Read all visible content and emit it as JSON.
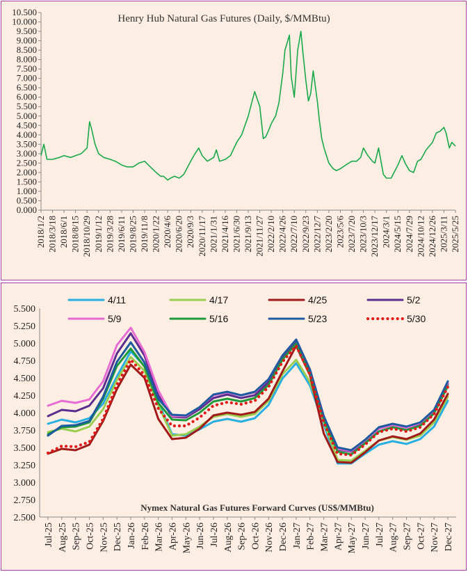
{
  "colors": {
    "panel_bg": "#fdeee4",
    "border": "#a33ca3",
    "henry_hub_line": "#18a84a",
    "axis": "#888888"
  },
  "chart_data": [
    {
      "type": "line",
      "title": "Henry Hub Natural Gas Futures (Daily,  $/MMBtu)",
      "xlabel": "",
      "ylabel": "",
      "ylim": [
        0,
        10.5
      ],
      "yticks": [
        "0.000",
        "0.500",
        "1.000",
        "1.500",
        "2.000",
        "2.500",
        "3.000",
        "3.500",
        "4.000",
        "4.500",
        "5.000",
        "5.500",
        "6.000",
        "6.500",
        "7.000",
        "7.500",
        "8.000",
        "8.500",
        "9.000",
        "9.500",
        "10.000",
        "10.500"
      ],
      "grid": false,
      "legend": "none",
      "x_tick_labels": [
        "2018/1/2",
        "2018/3/18",
        "2018/6/1",
        "2018/8/15",
        "2018/10/29",
        "2019/1/12",
        "2019/3/28",
        "2019/6/11",
        "2019/8/25",
        "2019/11/8",
        "2020/1/22",
        "2020/4/6",
        "2020/6/20",
        "2020/9/3",
        "2020/11/17",
        "2021/1/31",
        "2021/4/16",
        "2021/6/30",
        "2021/9/13",
        "2021/11/27",
        "2022/2/10",
        "2022/4/26",
        "2022/7/10",
        "2022/9/23",
        "2022/12/7",
        "2023/2/20",
        "2023/5/6",
        "2023/7/20",
        "2023/10/3",
        "2023/12/17",
        "2024/3/1",
        "2024/5/15",
        "2024/7/29",
        "2024/10/12",
        "2024/12/26",
        "2025/3/11",
        "2025/5/25"
      ],
      "series": [
        {
          "name": "",
          "x": [
            "2018-01-02",
            "2018-01-20",
            "2018-02-10",
            "2018-03-18",
            "2018-05-01",
            "2018-06-01",
            "2018-07-15",
            "2018-08-15",
            "2018-09-20",
            "2018-10-29",
            "2018-11-14",
            "2018-11-28",
            "2018-12-20",
            "2019-01-12",
            "2019-02-15",
            "2019-03-28",
            "2019-05-01",
            "2019-06-11",
            "2019-07-15",
            "2019-08-25",
            "2019-10-01",
            "2019-11-08",
            "2019-12-15",
            "2020-01-22",
            "2020-02-20",
            "2020-03-10",
            "2020-04-06",
            "2020-04-25",
            "2020-05-20",
            "2020-06-20",
            "2020-07-20",
            "2020-08-15",
            "2020-09-03",
            "2020-10-01",
            "2020-10-25",
            "2020-11-17",
            "2020-12-20",
            "2021-01-31",
            "2021-02-17",
            "2021-03-10",
            "2021-04-16",
            "2021-05-20",
            "2021-06-30",
            "2021-08-01",
            "2021-09-13",
            "2021-10-05",
            "2021-10-25",
            "2021-11-27",
            "2021-12-20",
            "2022-01-05",
            "2022-01-27",
            "2022-02-10",
            "2022-03-10",
            "2022-04-01",
            "2022-04-26",
            "2022-05-10",
            "2022-06-08",
            "2022-06-20",
            "2022-07-10",
            "2022-08-01",
            "2022-08-22",
            "2022-09-05",
            "2022-09-23",
            "2022-10-10",
            "2022-10-25",
            "2022-11-10",
            "2022-12-07",
            "2022-12-20",
            "2023-01-05",
            "2023-01-20",
            "2023-02-20",
            "2023-03-20",
            "2023-04-10",
            "2023-05-06",
            "2023-06-10",
            "2023-07-20",
            "2023-08-20",
            "2023-09-15",
            "2023-10-03",
            "2023-11-01",
            "2023-12-01",
            "2023-12-17",
            "2024-01-10",
            "2024-02-10",
            "2024-03-01",
            "2024-04-01",
            "2024-05-15",
            "2024-06-10",
            "2024-07-01",
            "2024-07-29",
            "2024-08-25",
            "2024-09-20",
            "2024-10-12",
            "2024-11-15",
            "2024-12-26",
            "2025-01-20",
            "2025-02-15",
            "2025-03-11",
            "2025-03-25",
            "2025-04-15",
            "2025-05-01",
            "2025-05-25"
          ],
          "values": [
            2.9,
            3.5,
            2.7,
            2.7,
            2.8,
            2.9,
            2.8,
            2.9,
            3.0,
            3.3,
            4.7,
            4.3,
            3.5,
            3.0,
            2.8,
            2.7,
            2.6,
            2.4,
            2.3,
            2.3,
            2.5,
            2.6,
            2.3,
            2.0,
            1.8,
            1.8,
            1.6,
            1.7,
            1.8,
            1.7,
            1.9,
            2.3,
            2.6,
            3.0,
            3.3,
            2.9,
            2.6,
            2.8,
            3.2,
            2.6,
            2.7,
            2.9,
            3.6,
            4.0,
            5.0,
            5.7,
            6.3,
            5.5,
            3.8,
            3.9,
            4.3,
            4.6,
            5.0,
            5.7,
            7.3,
            8.5,
            9.3,
            7.1,
            6.0,
            8.5,
            9.5,
            8.3,
            6.9,
            5.8,
            6.2,
            7.4,
            5.8,
            4.8,
            3.8,
            3.3,
            2.5,
            2.2,
            2.1,
            2.2,
            2.4,
            2.6,
            2.6,
            2.8,
            3.3,
            2.9,
            2.6,
            2.5,
            3.3,
            1.9,
            1.7,
            1.7,
            2.4,
            2.9,
            2.5,
            2.1,
            2.0,
            2.6,
            2.7,
            3.2,
            3.6,
            4.1,
            4.2,
            4.4,
            4.1,
            3.3,
            3.6,
            3.4
          ]
        }
      ]
    },
    {
      "type": "line",
      "title": "Nymex  Natural  Gas Futures Forward  Curves (US$/MMBtu)",
      "xlabel": "",
      "ylabel": "",
      "ylim": [
        2.5,
        5.5
      ],
      "yticks": [
        "2.500",
        "2.750",
        "3.000",
        "3.250",
        "3.500",
        "3.750",
        "4.000",
        "4.250",
        "4.500",
        "4.750",
        "5.000",
        "5.250",
        "5.500"
      ],
      "grid": false,
      "legend": "top",
      "categories": [
        "Jul-25",
        "Aug-25",
        "Sep-25",
        "Oct-25",
        "Nov-25",
        "Dec-25",
        "Jan-26",
        "Feb-26",
        "Mar-26",
        "Apr-26",
        "May-26",
        "Jun-26",
        "Jul-26",
        "Aug-26",
        "Sep-26",
        "Oct-26",
        "Nov-26",
        "Dec-26",
        "Jan-27",
        "Feb-27",
        "Mar-27",
        "Apr-27",
        "May-27",
        "Jun-27",
        "Jul-27",
        "Aug-27",
        "Sep-27",
        "Oct-27",
        "Nov-27",
        "Dec-27"
      ],
      "series": [
        {
          "name": "4/11",
          "color": "#28aee0",
          "dotted": false,
          "values": [
            3.84,
            3.9,
            3.86,
            3.92,
            4.13,
            4.52,
            4.88,
            4.67,
            4.15,
            3.69,
            3.67,
            3.76,
            3.87,
            3.91,
            3.87,
            3.92,
            4.11,
            4.49,
            4.71,
            4.39,
            3.83,
            3.27,
            3.27,
            3.41,
            3.54,
            3.59,
            3.55,
            3.62,
            3.8,
            4.17
          ]
        },
        {
          "name": "4/17",
          "color": "#9acd4e",
          "dotted": false,
          "values": [
            3.72,
            3.77,
            3.73,
            3.8,
            4.05,
            4.47,
            4.8,
            4.6,
            4.11,
            3.67,
            3.69,
            3.8,
            3.94,
            3.98,
            3.94,
            3.98,
            4.17,
            4.55,
            4.76,
            4.44,
            3.87,
            3.32,
            3.31,
            3.45,
            3.6,
            3.65,
            3.61,
            3.67,
            3.86,
            4.23
          ]
        },
        {
          "name": "4/25",
          "color": "#a11a1a",
          "dotted": false,
          "values": [
            3.41,
            3.48,
            3.46,
            3.54,
            3.88,
            4.34,
            4.69,
            4.5,
            3.91,
            3.62,
            3.64,
            3.77,
            3.96,
            4.0,
            3.97,
            4.01,
            4.2,
            4.59,
            4.96,
            4.54,
            3.7,
            3.29,
            3.28,
            3.43,
            3.6,
            3.66,
            3.62,
            3.7,
            3.9,
            4.27
          ]
        },
        {
          "name": "5/2",
          "color": "#5b2d8e",
          "dotted": false,
          "values": [
            3.95,
            4.04,
            4.02,
            4.1,
            4.35,
            4.85,
            5.14,
            4.82,
            4.25,
            3.94,
            3.93,
            4.05,
            4.21,
            4.26,
            4.21,
            4.25,
            4.44,
            4.79,
            5.01,
            4.6,
            3.94,
            3.47,
            3.44,
            3.59,
            3.77,
            3.82,
            3.78,
            3.84,
            4.02,
            4.41
          ]
        },
        {
          "name": "5/9",
          "color": "#e86bd4",
          "dotted": false,
          "values": [
            4.1,
            4.17,
            4.14,
            4.19,
            4.45,
            4.97,
            5.22,
            4.87,
            4.32,
            3.95,
            3.95,
            4.08,
            4.25,
            4.29,
            4.25,
            4.29,
            4.48,
            4.82,
            5.05,
            4.62,
            3.95,
            3.48,
            3.45,
            3.6,
            3.77,
            3.82,
            3.78,
            3.85,
            4.03,
            4.43
          ]
        },
        {
          "name": "5/16",
          "color": "#1f9a3a",
          "dotted": false,
          "values": [
            3.69,
            3.79,
            3.8,
            3.86,
            4.2,
            4.67,
            4.92,
            4.66,
            4.14,
            3.9,
            3.89,
            4.0,
            4.16,
            4.2,
            4.16,
            4.21,
            4.4,
            4.76,
            4.99,
            4.57,
            3.9,
            3.44,
            3.4,
            3.56,
            3.73,
            3.79,
            3.75,
            3.81,
            3.99,
            4.38
          ]
        },
        {
          "name": "5/23",
          "color": "#1d5aa0",
          "dotted": false,
          "values": [
            3.67,
            3.81,
            3.82,
            3.88,
            4.23,
            4.73,
            5.01,
            4.72,
            4.2,
            3.97,
            3.96,
            4.08,
            4.26,
            4.3,
            4.25,
            4.3,
            4.48,
            4.82,
            5.05,
            4.62,
            3.95,
            3.5,
            3.46,
            3.61,
            3.79,
            3.84,
            3.8,
            3.86,
            4.04,
            4.45
          ]
        },
        {
          "name": "5/30",
          "color": "#e01b1b",
          "dotted": true,
          "values": [
            3.42,
            3.52,
            3.51,
            3.58,
            3.91,
            4.4,
            4.76,
            4.54,
            4.06,
            3.81,
            3.81,
            3.93,
            4.1,
            4.15,
            4.12,
            4.17,
            4.37,
            4.73,
            4.96,
            4.55,
            3.86,
            3.41,
            3.39,
            3.54,
            3.72,
            3.77,
            3.73,
            3.79,
            3.98,
            4.37
          ]
        }
      ]
    }
  ]
}
